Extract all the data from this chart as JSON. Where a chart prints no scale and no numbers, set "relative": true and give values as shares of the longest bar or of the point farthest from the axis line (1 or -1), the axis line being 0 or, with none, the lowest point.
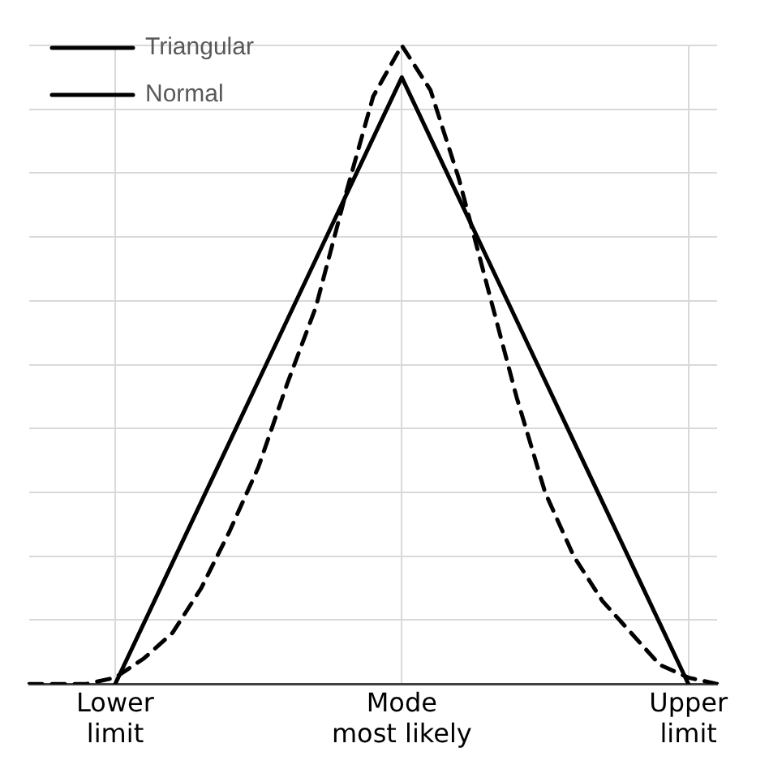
{
  "chart_data": {
    "type": "line",
    "relative": true,
    "categories": [
      null,
      null,
      null,
      "Lower limit",
      null,
      null,
      null,
      null,
      null,
      null,
      null,
      null,
      null,
      "Mode most likely",
      null,
      null,
      null,
      null,
      null,
      null,
      null,
      null,
      null,
      "Upper limit",
      null
    ],
    "grid": true,
    "legend": "top left",
    "marker": "none",
    "series": [
      {
        "name": "Triangular",
        "color": "#000000",
        "line_style": "solid",
        "values": [
          null,
          null,
          null,
          0,
          0.095,
          0.19,
          0.285,
          0.38,
          0.475,
          0.57,
          0.665,
          0.76,
          0.855,
          0.95,
          0.855,
          0.76,
          0.665,
          0.57,
          0.475,
          0.38,
          0.285,
          0.19,
          0.095,
          0,
          null
        ]
      },
      {
        "name": "Normal",
        "color": "#000000",
        "line_style": "dashed",
        "values": [
          0,
          0,
          0,
          0.01,
          0.04,
          0.08,
          0.15,
          0.24,
          0.34,
          0.47,
          0.59,
          0.76,
          0.92,
          1,
          0.93,
          0.79,
          0.62,
          0.45,
          0.3,
          0.2,
          0.13,
          0.08,
          0.03,
          0.01,
          0
        ]
      }
    ]
  }
}
